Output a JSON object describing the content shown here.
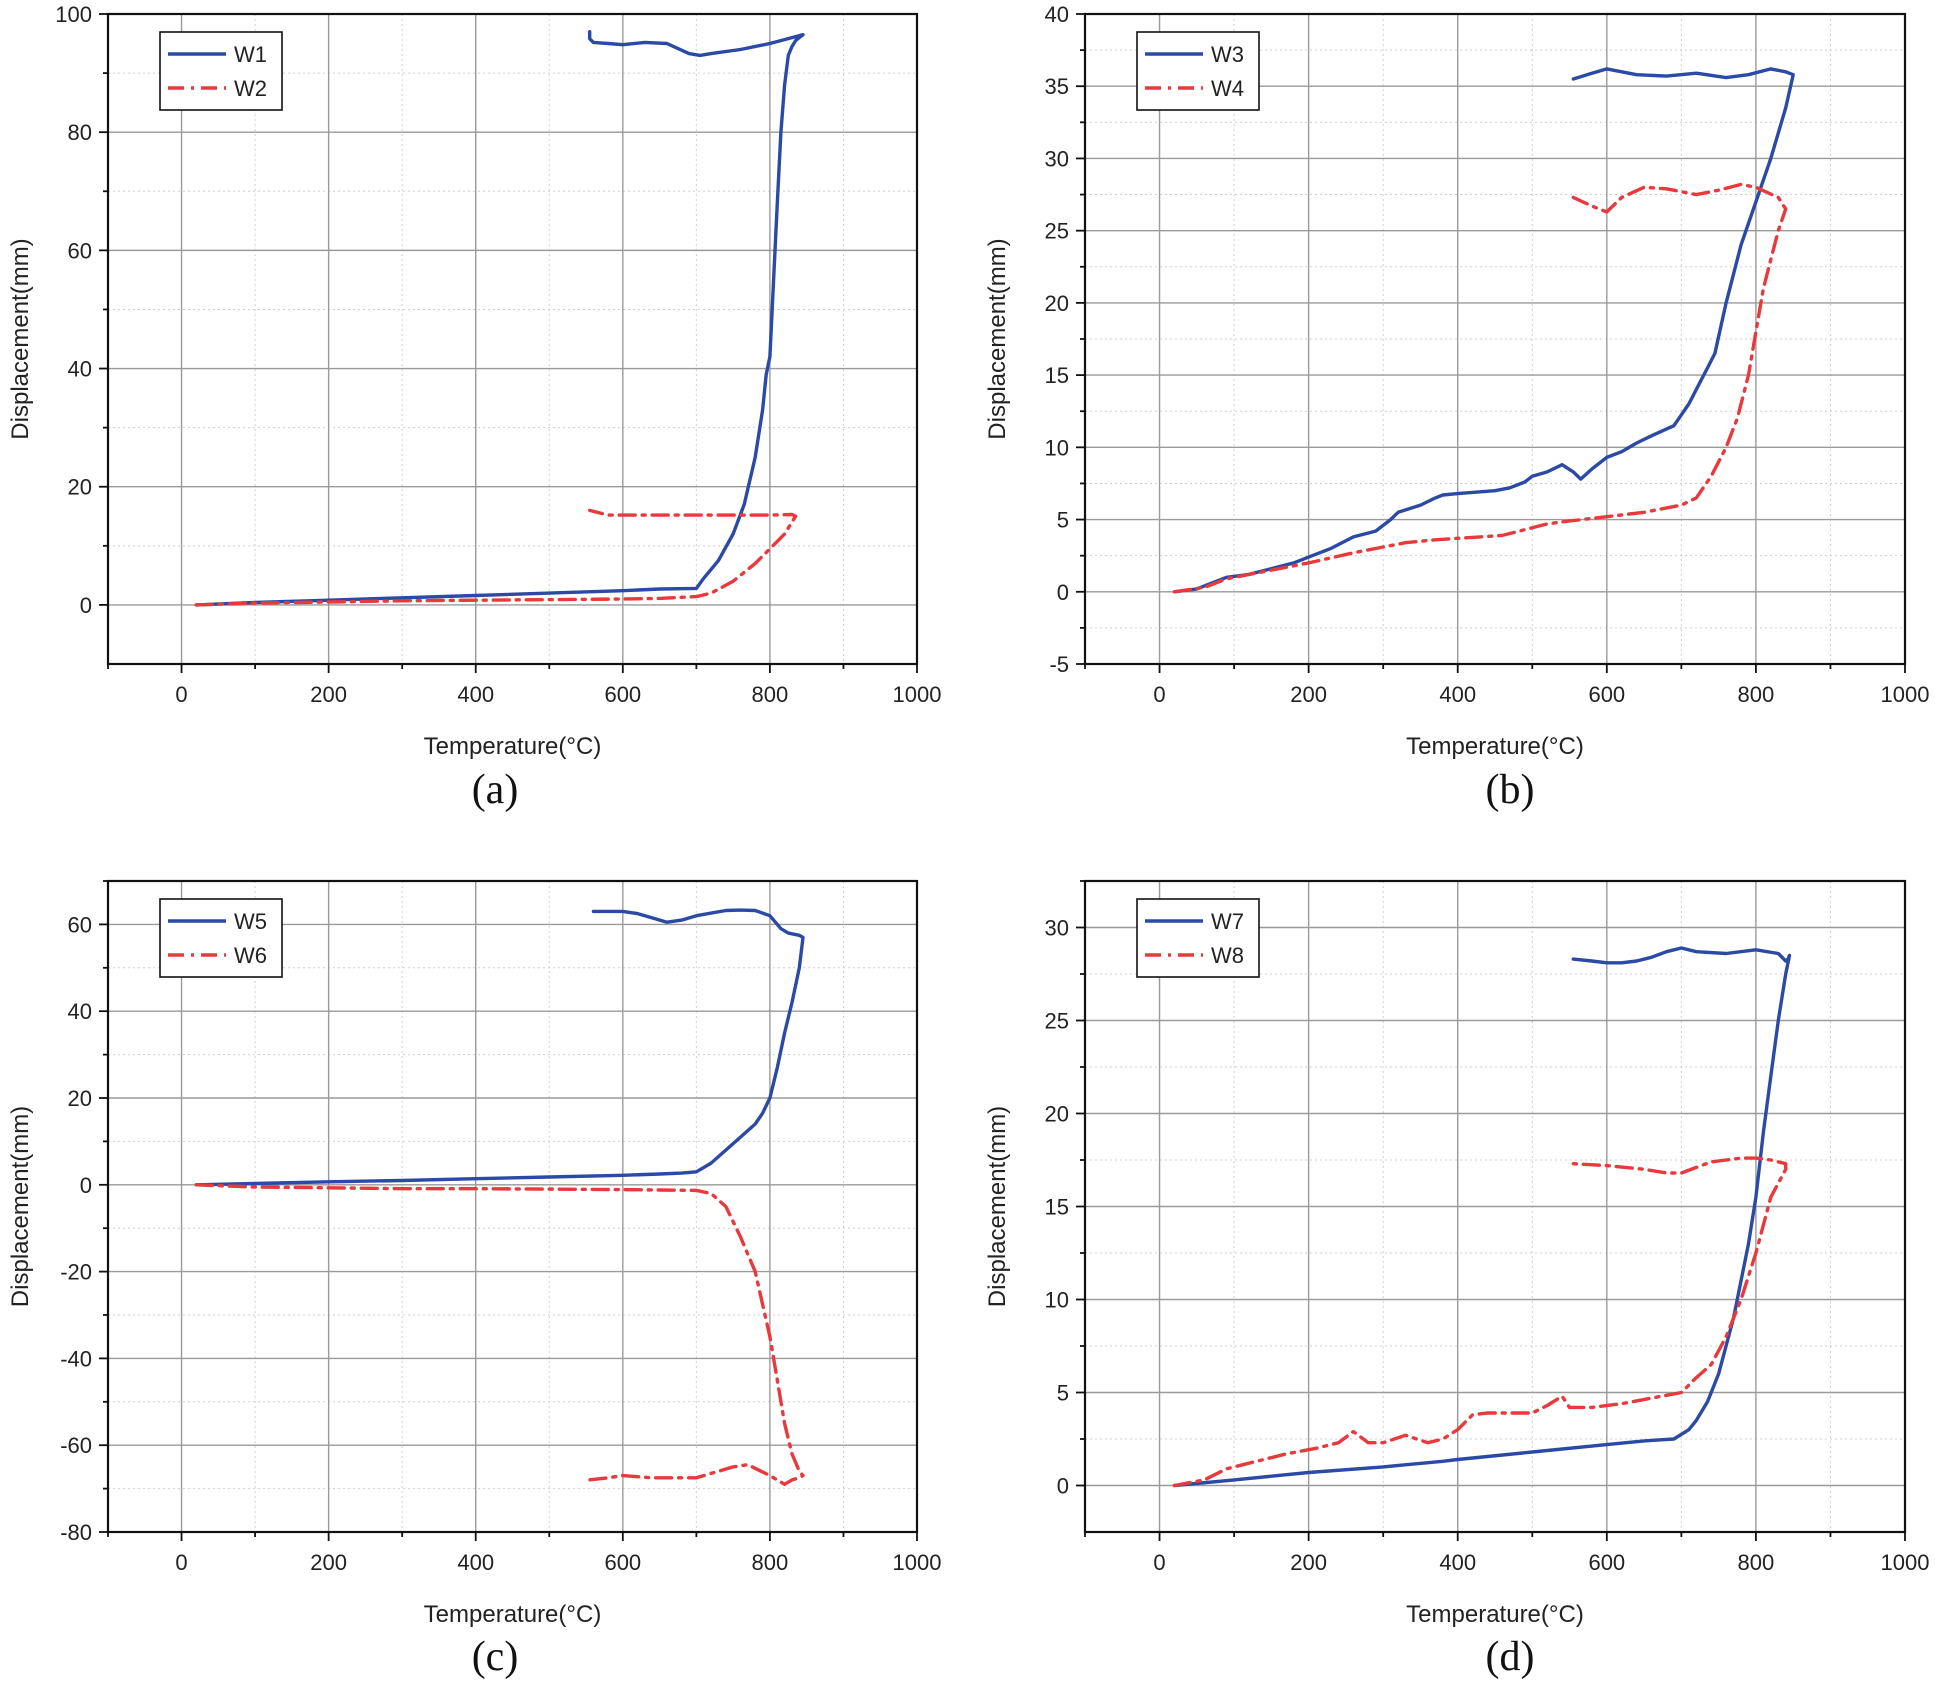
{
  "figure": {
    "series_colors": {
      "solid": "#2b4aa6",
      "dashdot": "#e8393c"
    },
    "grid_color": "#9a9a9a",
    "minor_grid_color": "#cfcfcf"
  },
  "chart_data": [
    {
      "type": "line",
      "caption": "(a)",
      "xlabel": "Temperature(°C)",
      "ylabel": "Displacement(mm)",
      "xlim": [
        -100,
        1000
      ],
      "ylim": [
        -10,
        100
      ],
      "xticks": [
        0,
        200,
        400,
        600,
        800,
        1000
      ],
      "yticks": [
        0,
        20,
        40,
        60,
        80,
        100
      ],
      "legend_position": "top-left",
      "series": [
        {
          "name": "W1",
          "style": "solid",
          "x": [
            20,
            100,
            200,
            300,
            400,
            500,
            600,
            650,
            700,
            710,
            730,
            750,
            765,
            780,
            790,
            795,
            800,
            805,
            810,
            815,
            820,
            825,
            830,
            835,
            840,
            845,
            830,
            800,
            760,
            720,
            705,
            690,
            660,
            630,
            600,
            580,
            560,
            555,
            555
          ],
          "y": [
            0,
            0.4,
            0.8,
            1.2,
            1.6,
            2.0,
            2.4,
            2.7,
            2.8,
            4.5,
            7.5,
            12,
            17,
            25,
            33,
            39,
            42,
            55,
            68,
            80,
            88,
            93,
            94.5,
            95.5,
            96,
            96.5,
            96,
            95,
            94,
            93.3,
            93,
            93.3,
            95,
            95.2,
            94.8,
            95,
            95.2,
            95.8,
            97
          ]
        },
        {
          "name": "W2",
          "style": "dashdot",
          "x": [
            20,
            100,
            200,
            300,
            400,
            500,
            600,
            650,
            700,
            720,
            750,
            780,
            800,
            820,
            835,
            830,
            800,
            700,
            600,
            580,
            555
          ],
          "y": [
            0,
            0.3,
            0.5,
            0.7,
            0.8,
            0.9,
            1.0,
            1.1,
            1.4,
            2.0,
            4.0,
            7.0,
            9.5,
            12,
            15,
            15.3,
            15.2,
            15.2,
            15.2,
            15.2,
            16
          ]
        }
      ]
    },
    {
      "type": "line",
      "caption": "(b)",
      "xlabel": "Temperature(°C)",
      "ylabel": "Displacement(mm)",
      "xlim": [
        -100,
        1000
      ],
      "ylim": [
        -5,
        40
      ],
      "xticks": [
        0,
        200,
        400,
        600,
        800,
        1000
      ],
      "yticks": [
        -5,
        0,
        5,
        10,
        15,
        20,
        25,
        30,
        35,
        40
      ],
      "legend_position": "top-left",
      "series": [
        {
          "name": "W3",
          "style": "solid",
          "x": [
            20,
            50,
            70,
            90,
            120,
            150,
            180,
            200,
            230,
            260,
            290,
            310,
            320,
            350,
            370,
            380,
            400,
            450,
            470,
            490,
            500,
            520,
            540,
            555,
            565,
            580,
            600,
            620,
            640,
            660,
            690,
            710,
            725,
            735,
            745,
            760,
            780,
            800,
            820,
            840,
            850,
            850,
            840,
            820,
            790,
            760,
            720,
            680,
            640,
            600,
            580,
            555
          ],
          "y": [
            0,
            0.2,
            0.6,
            1.0,
            1.2,
            1.6,
            2.0,
            2.4,
            3.0,
            3.8,
            4.2,
            5.0,
            5.5,
            6.0,
            6.5,
            6.7,
            6.8,
            7.0,
            7.2,
            7.6,
            8.0,
            8.3,
            8.8,
            8.3,
            7.8,
            8.5,
            9.3,
            9.7,
            10.3,
            10.8,
            11.5,
            13.0,
            14.5,
            15.5,
            16.5,
            20.0,
            24.0,
            27.0,
            30.0,
            33.5,
            35.8,
            35.8,
            36.0,
            36.2,
            35.8,
            35.6,
            35.9,
            35.7,
            35.8,
            36.2,
            35.9,
            35.5
          ]
        },
        {
          "name": "W4",
          "style": "dashdot",
          "x": [
            20,
            60,
            90,
            130,
            160,
            200,
            260,
            300,
            330,
            370,
            400,
            430,
            460,
            490,
            520,
            550,
            600,
            650,
            700,
            720,
            740,
            760,
            775,
            790,
            800,
            810,
            820,
            830,
            840,
            830,
            800,
            780,
            750,
            720,
            700,
            680,
            650,
            620,
            600,
            580,
            555
          ],
          "y": [
            0,
            0.3,
            0.9,
            1.3,
            1.6,
            2.0,
            2.7,
            3.1,
            3.4,
            3.6,
            3.7,
            3.8,
            3.9,
            4.3,
            4.7,
            4.9,
            5.2,
            5.5,
            6.0,
            6.5,
            8.0,
            10.0,
            12.0,
            15.0,
            18.0,
            21.0,
            23.0,
            25.0,
            26.5,
            27.3,
            28.0,
            28.2,
            27.8,
            27.5,
            27.7,
            27.9,
            28.0,
            27.3,
            26.3,
            26.7,
            27.3
          ]
        }
      ]
    },
    {
      "type": "line",
      "caption": "(c)",
      "xlabel": "Temperature(°C)",
      "ylabel": "Displacement(mm)",
      "xlim": [
        -100,
        1000
      ],
      "ylim": [
        -80,
        70
      ],
      "xticks": [
        0,
        200,
        400,
        600,
        800,
        1000
      ],
      "yticks": [
        -80,
        -60,
        -40,
        -20,
        0,
        20,
        40,
        60
      ],
      "legend_position": "top-left",
      "series": [
        {
          "name": "W5",
          "style": "solid",
          "x": [
            20,
            100,
            200,
            300,
            400,
            500,
            600,
            650,
            680,
            700,
            720,
            740,
            760,
            780,
            790,
            800,
            810,
            820,
            830,
            840,
            845,
            840,
            825,
            815,
            800,
            780,
            760,
            740,
            700,
            680,
            660,
            640,
            620,
            600,
            560
          ],
          "y": [
            0,
            0.3,
            0.7,
            1.0,
            1.4,
            1.8,
            2.2,
            2.5,
            2.7,
            3.0,
            5.0,
            8.0,
            11.0,
            14.0,
            16.5,
            20.0,
            27.0,
            35.0,
            42.0,
            50.0,
            57.0,
            57.5,
            58.0,
            59.0,
            62.0,
            63.2,
            63.3,
            63.2,
            62.0,
            61.0,
            60.5,
            61.5,
            62.5,
            63.0,
            63.0
          ]
        },
        {
          "name": "W6",
          "style": "dashdot",
          "x": [
            20,
            100,
            200,
            300,
            400,
            500,
            600,
            650,
            700,
            720,
            740,
            760,
            780,
            800,
            810,
            820,
            830,
            840,
            845,
            840,
            830,
            820,
            800,
            770,
            750,
            720,
            700,
            680,
            640,
            600,
            580,
            555
          ],
          "y": [
            0,
            -0.5,
            -0.7,
            -0.9,
            -0.9,
            -1.0,
            -1.1,
            -1.2,
            -1.3,
            -2.0,
            -5.0,
            -12.0,
            -20.0,
            -35.0,
            -45.0,
            -55.0,
            -62.0,
            -66.0,
            -67.0,
            -67.5,
            -68.0,
            -69.0,
            -67.0,
            -64.5,
            -65.0,
            -66.5,
            -67.5,
            -67.5,
            -67.5,
            -67.0,
            -67.5,
            -68.0
          ]
        }
      ]
    },
    {
      "type": "line",
      "caption": "(d)",
      "xlabel": "Temperature(°C)",
      "ylabel": "Displacement(mm)",
      "xlim": [
        -100,
        1000
      ],
      "ylim": [
        -2.5,
        32.5
      ],
      "xticks": [
        0,
        200,
        400,
        600,
        800,
        1000
      ],
      "yticks": [
        0,
        5,
        10,
        15,
        20,
        25,
        30
      ],
      "legend_position": "top-left",
      "series": [
        {
          "name": "W7",
          "style": "solid",
          "x": [
            20,
            100,
            200,
            300,
            380,
            400,
            500,
            600,
            650,
            690,
            710,
            720,
            735,
            750,
            770,
            790,
            800,
            810,
            820,
            830,
            840,
            845,
            843,
            840,
            830,
            800,
            760,
            720,
            700,
            680,
            660,
            640,
            620,
            600,
            580,
            555
          ],
          "y": [
            0,
            0.3,
            0.7,
            1.0,
            1.3,
            1.4,
            1.8,
            2.2,
            2.4,
            2.5,
            3.0,
            3.5,
            4.5,
            6.0,
            9.0,
            13.0,
            15.5,
            19.0,
            22.0,
            25.0,
            27.5,
            28.5,
            28.3,
            28.2,
            28.6,
            28.8,
            28.6,
            28.7,
            28.9,
            28.7,
            28.4,
            28.2,
            28.1,
            28.1,
            28.2,
            28.3
          ]
        },
        {
          "name": "W8",
          "style": "dashdot",
          "x": [
            20,
            60,
            90,
            130,
            170,
            210,
            240,
            260,
            280,
            300,
            330,
            360,
            380,
            400,
            420,
            440,
            470,
            500,
            520,
            540,
            550,
            580,
            620,
            660,
            700,
            720,
            740,
            760,
            780,
            800,
            820,
            840,
            840,
            820,
            800,
            780,
            760,
            740,
            720,
            700,
            680,
            650,
            600,
            555
          ],
          "y": [
            0,
            0.3,
            0.9,
            1.3,
            1.7,
            2.0,
            2.3,
            2.9,
            2.3,
            2.3,
            2.7,
            2.3,
            2.5,
            3.0,
            3.8,
            3.9,
            3.9,
            3.9,
            4.3,
            4.8,
            4.2,
            4.2,
            4.4,
            4.7,
            5.0,
            5.8,
            6.5,
            8.0,
            10.0,
            12.5,
            15.5,
            17.0,
            17.3,
            17.5,
            17.6,
            17.6,
            17.5,
            17.4,
            17.1,
            16.8,
            16.8,
            17.0,
            17.2,
            17.3
          ]
        }
      ]
    }
  ]
}
